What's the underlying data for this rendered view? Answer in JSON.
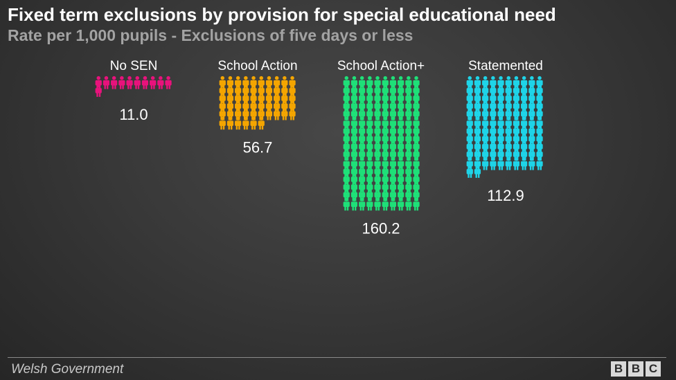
{
  "title": "Fixed term exclusions by provision for special educational need",
  "subtitle": "Rate per 1,000 pupils - Exclusions of five days or less",
  "source": "Welsh Government",
  "logo_letters": [
    "B",
    "B",
    "C"
  ],
  "chart_data": {
    "type": "bar",
    "categories": [
      "No SEN",
      "School Action",
      "School Action+",
      "Statemented"
    ],
    "values": [
      11.0,
      56.7,
      160.2,
      112.9
    ],
    "value_labels": [
      "11.0",
      "56.7",
      "160.2",
      "112.9"
    ],
    "unit_per_icon": 1,
    "icons_per_row": 10,
    "colors": [
      "#e8127c",
      "#f4a500",
      "#1ee078",
      "#1ed4e8"
    ],
    "icon": "person-icon"
  }
}
